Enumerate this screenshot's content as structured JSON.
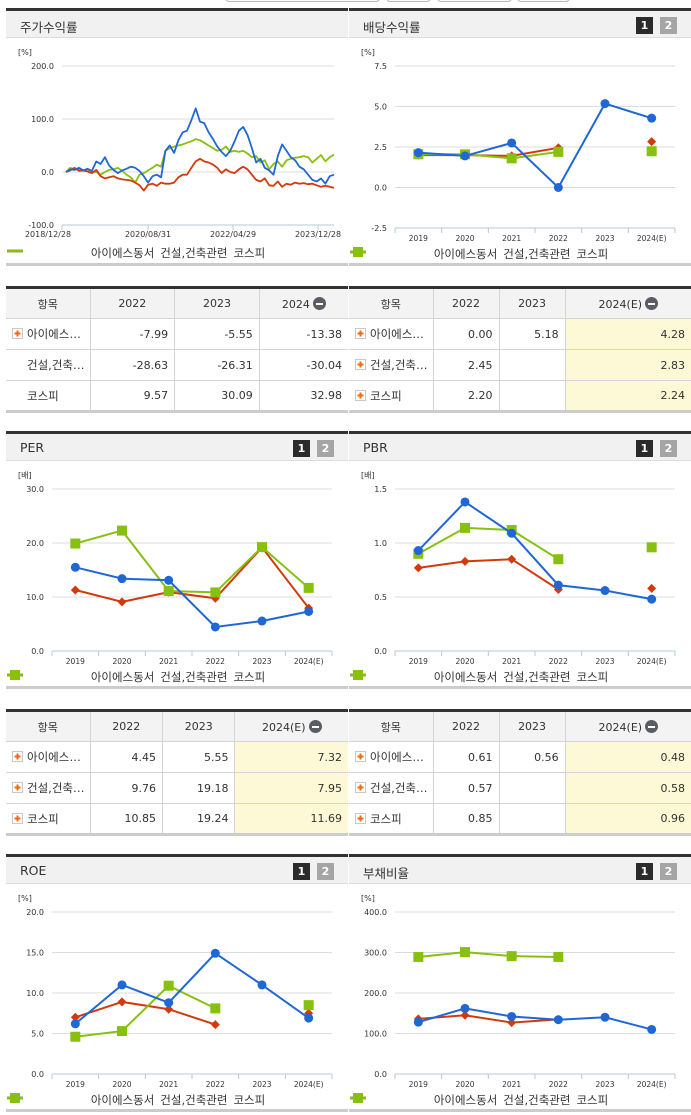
{
  "series_names": [
    "아이에스동서",
    "건설,건축관련",
    "코스피"
  ],
  "colors": {
    "company": "#2067d6",
    "industry": "#d23a0c",
    "kospi": "#88c00f",
    "estimate_bg": "#fdf8d5"
  },
  "pager": {
    "page1": "1",
    "page2": "2"
  },
  "table_header": {
    "item": "항목"
  },
  "panels": {
    "stock_return": {
      "title": "주가수익률",
      "unit": "[%]",
      "table": {
        "columns": [
          "2022",
          "2023",
          "2024"
        ],
        "rows": [
          {
            "name": "아이에스…",
            "values": [
              "-7.99",
              "-5.55",
              "-13.38"
            ]
          },
          {
            "name": "건설,건축…",
            "values": [
              "-28.63",
              "-26.31",
              "-30.04"
            ]
          },
          {
            "name": "코스피",
            "values": [
              "9.57",
              "30.09",
              "32.98"
            ]
          }
        ]
      }
    },
    "dividend_yield": {
      "title": "배당수익률",
      "unit": "[%]",
      "table": {
        "columns": [
          "2022",
          "2023",
          "2024(E)"
        ],
        "rows": [
          {
            "name": "아이에스…",
            "values": [
              "0.00",
              "5.18",
              "4.28"
            ]
          },
          {
            "name": "건설,건축…",
            "values": [
              "2.45",
              "",
              "2.83"
            ]
          },
          {
            "name": "코스피",
            "values": [
              "2.20",
              "",
              "2.24"
            ]
          }
        ]
      }
    },
    "per": {
      "title": "PER",
      "unit": "[배]",
      "table": {
        "columns": [
          "2022",
          "2023",
          "2024(E)"
        ],
        "rows": [
          {
            "name": "아이에스…",
            "values": [
              "4.45",
              "5.55",
              "7.32"
            ]
          },
          {
            "name": "건설,건축…",
            "values": [
              "9.76",
              "19.18",
              "7.95"
            ]
          },
          {
            "name": "코스피",
            "values": [
              "10.85",
              "19.24",
              "11.69"
            ]
          }
        ]
      }
    },
    "pbr": {
      "title": "PBR",
      "unit": "[배]",
      "table": {
        "columns": [
          "2022",
          "2023",
          "2024(E)"
        ],
        "rows": [
          {
            "name": "아이에스…",
            "values": [
              "0.61",
              "0.56",
              "0.48"
            ]
          },
          {
            "name": "건설,건축…",
            "values": [
              "0.57",
              "",
              "0.58"
            ]
          },
          {
            "name": "코스피",
            "values": [
              "0.85",
              "",
              "0.96"
            ]
          }
        ]
      }
    },
    "roe": {
      "title": "ROE",
      "unit": "[%]"
    },
    "debt_ratio": {
      "title": "부채비율",
      "unit": "[%]"
    }
  },
  "chart_data": [
    {
      "id": "stock_return",
      "type": "line",
      "title": "주가수익률",
      "ylabel": "[%]",
      "ylim": [
        -100,
        200
      ],
      "yticks": [
        "200.0",
        "100.0",
        "0.0",
        "-100.0"
      ],
      "x_ticks": [
        "2018/12/28",
        "2020/08/31",
        "2022/04/29",
        "2023/12/28"
      ],
      "series": [
        {
          "name": "아이에스동서",
          "values": [
            0,
            5,
            4,
            8,
            3,
            6,
            2,
            20,
            15,
            28,
            12,
            4,
            -2,
            3,
            6,
            10,
            8,
            2,
            -8,
            -20,
            -8,
            -5,
            -10,
            40,
            50,
            36,
            60,
            75,
            78,
            98,
            120,
            95,
            92,
            75,
            62,
            48,
            38,
            30,
            40,
            58,
            78,
            85,
            70,
            45,
            18,
            25,
            8,
            3,
            -5,
            30,
            52,
            40,
            28,
            22,
            10,
            5,
            -5,
            -15,
            -18,
            -12,
            -22,
            -8,
            -5
          ]
        },
        {
          "name": "건설,건축관련",
          "values": [
            0,
            3,
            8,
            2,
            3,
            1,
            -2,
            4,
            -8,
            -12,
            -10,
            -8,
            -12,
            -14,
            -15,
            -16,
            -20,
            -25,
            -35,
            -24,
            -22,
            -26,
            -20,
            -22,
            -22,
            -20,
            -10,
            -5,
            -5,
            8,
            20,
            25,
            20,
            18,
            14,
            8,
            -2,
            5,
            0,
            -2,
            5,
            10,
            5,
            -5,
            -15,
            -18,
            -12,
            -25,
            -26,
            -18,
            -28,
            -22,
            -24,
            -20,
            -22,
            -21,
            -23,
            -22,
            -25,
            -28,
            -26,
            -28,
            -30
          ]
        },
        {
          "name": "코스피",
          "values": [
            0,
            8,
            5,
            6,
            2,
            5,
            0,
            0,
            -5,
            0,
            4,
            5,
            8,
            2,
            -5,
            -10,
            -20,
            -5,
            -2,
            3,
            8,
            14,
            10,
            40,
            45,
            48,
            50,
            52,
            55,
            58,
            62,
            60,
            55,
            50,
            45,
            40,
            42,
            48,
            38,
            40,
            38,
            40,
            35,
            28,
            30,
            18,
            22,
            5,
            15,
            20,
            10,
            22,
            25,
            27,
            28,
            30,
            28,
            18,
            25,
            32,
            20,
            28,
            33
          ]
        }
      ]
    },
    {
      "id": "dividend_yield",
      "type": "line",
      "title": "배당수익률",
      "ylabel": "[%]",
      "ylim": [
        -2.5,
        7.5
      ],
      "yticks": [
        "7.5",
        "5.0",
        "2.5",
        "0.0",
        "-2.5"
      ],
      "categories": [
        "2019",
        "2020",
        "2021",
        "2022",
        "2023",
        "2024(E)"
      ],
      "series": [
        {
          "name": "아이에스동서",
          "values": [
            2.15,
            1.95,
            2.75,
            0.0,
            5.18,
            4.28
          ]
        },
        {
          "name": "건설,건축관련",
          "values": [
            2.0,
            2.0,
            1.95,
            2.45,
            null,
            2.83
          ]
        },
        {
          "name": "코스피",
          "values": [
            2.05,
            2.05,
            1.8,
            2.2,
            null,
            2.24
          ]
        }
      ]
    },
    {
      "id": "per",
      "type": "line",
      "title": "PER",
      "ylabel": "[배]",
      "ylim": [
        0,
        30
      ],
      "yticks": [
        "30.0",
        "20.0",
        "10.0",
        "0.0"
      ],
      "categories": [
        "2019",
        "2020",
        "2021",
        "2022",
        "2023",
        "2024(E)"
      ],
      "series": [
        {
          "name": "아이에스동서",
          "values": [
            15.5,
            13.4,
            13.1,
            4.45,
            5.55,
            7.32
          ]
        },
        {
          "name": "건설,건축관련",
          "values": [
            11.3,
            9.1,
            10.9,
            9.76,
            19.18,
            7.95
          ]
        },
        {
          "name": "코스피",
          "values": [
            19.9,
            22.3,
            11.1,
            10.85,
            19.24,
            11.69
          ]
        }
      ]
    },
    {
      "id": "pbr",
      "type": "line",
      "title": "PBR",
      "ylabel": "[배]",
      "ylim": [
        0,
        1.5
      ],
      "yticks": [
        "1.5",
        "1.0",
        "0.5",
        "0.0"
      ],
      "categories": [
        "2019",
        "2020",
        "2021",
        "2022",
        "2023",
        "2024(E)"
      ],
      "series": [
        {
          "name": "아이에스동서",
          "values": [
            0.93,
            1.38,
            1.09,
            0.61,
            0.56,
            0.48
          ]
        },
        {
          "name": "건설,건축관련",
          "values": [
            0.77,
            0.83,
            0.85,
            0.57,
            null,
            0.58
          ]
        },
        {
          "name": "코스피",
          "values": [
            0.9,
            1.14,
            1.12,
            0.85,
            null,
            0.96
          ]
        }
      ]
    },
    {
      "id": "roe",
      "type": "line",
      "title": "ROE",
      "ylabel": "[%]",
      "ylim": [
        0,
        20
      ],
      "yticks": [
        "20.0",
        "15.0",
        "10.0",
        "5.0",
        "0.0"
      ],
      "categories": [
        "2019",
        "2020",
        "2021",
        "2022",
        "2023",
        "2024(E)"
      ],
      "series": [
        {
          "name": "아이에스동서",
          "values": [
            6.2,
            11.0,
            8.8,
            14.9,
            11.0,
            6.9
          ]
        },
        {
          "name": "건설,건축관련",
          "values": [
            7.0,
            8.9,
            8.0,
            6.1,
            null,
            7.5
          ]
        },
        {
          "name": "코스피",
          "values": [
            4.6,
            5.3,
            10.9,
            8.1,
            null,
            8.5
          ]
        }
      ]
    },
    {
      "id": "debt_ratio",
      "type": "line",
      "title": "부채비율",
      "ylabel": "[%]",
      "ylim": [
        0,
        400
      ],
      "yticks": [
        "400.0",
        "300.0",
        "200.0",
        "100.0",
        "0.0"
      ],
      "categories": [
        "2019",
        "2020",
        "2021",
        "2022",
        "2023",
        "2024(E)"
      ],
      "series": [
        {
          "name": "아이에스동서",
          "values": [
            128,
            162,
            142,
            134,
            140,
            110
          ]
        },
        {
          "name": "건설,건축관련",
          "values": [
            136,
            145,
            127,
            135,
            null,
            null
          ]
        },
        {
          "name": "코스피",
          "values": [
            289,
            301,
            291,
            289,
            null,
            null
          ]
        }
      ]
    }
  ]
}
